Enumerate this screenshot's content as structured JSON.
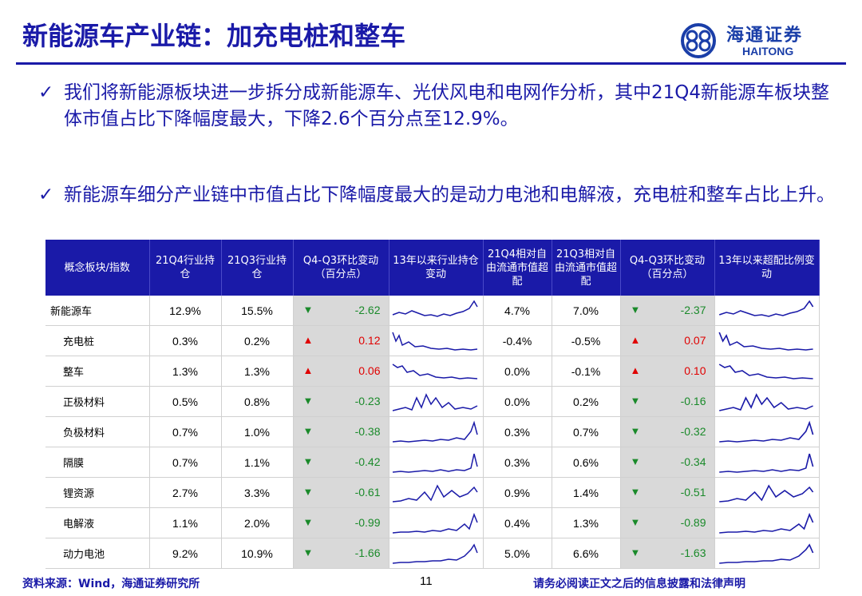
{
  "header": {
    "title": "新能源车产业链：加充电桩和整车",
    "logo_cn": "海通证券",
    "logo_en": "HAITONG",
    "accent": "#1a1aa8"
  },
  "bullets": [
    {
      "icon": "check-icon",
      "text": "我们将新能源板块进一步拆分成新能源车、光伏风电和电网作分析，其中21Q4新能源车板块整体市值占比下降幅度最大，下降2.6个百分点至12.9%。"
    },
    {
      "icon": "check-icon",
      "text": "新能源车细分产业链中市值占比下降幅度最大的是动力电池和电解液，充电桩和整车占比上升。"
    }
  ],
  "table": {
    "headers": [
      "概念板块/指数",
      "21Q4行业持仓",
      "21Q3行业持仓",
      "Q4-Q3环比变动（百分点）",
      "13年以来行业持仓变动",
      "21Q4相对自由流通市值超配",
      "21Q3相对自由流通市值超配",
      "Q4-Q3环比变动（百分点）",
      "13年以来超配比例变动"
    ],
    "rows": [
      {
        "name": "新能源车",
        "q4": "12.9%",
        "q3": "15.5%",
        "dir1": "down",
        "chg1": "-2.62",
        "ow4": "4.7%",
        "ow3": "7.0%",
        "dir2": "down",
        "chg2": "-2.37",
        "sub": false
      },
      {
        "name": "充电桩",
        "q4": "0.3%",
        "q3": "0.2%",
        "dir1": "up",
        "chg1": "0.12",
        "ow4": "-0.4%",
        "ow3": "-0.5%",
        "dir2": "up",
        "chg2": "0.07",
        "sub": true
      },
      {
        "name": "整车",
        "q4": "1.3%",
        "q3": "1.3%",
        "dir1": "up",
        "chg1": "0.06",
        "ow4": "0.0%",
        "ow3": "-0.1%",
        "dir2": "up",
        "chg2": "0.10",
        "sub": true
      },
      {
        "name": "正极材料",
        "q4": "0.5%",
        "q3": "0.8%",
        "dir1": "down",
        "chg1": "-0.23",
        "ow4": "0.0%",
        "ow3": "0.2%",
        "dir2": "down",
        "chg2": "-0.16",
        "sub": true
      },
      {
        "name": "负极材料",
        "q4": "0.7%",
        "q3": "1.0%",
        "dir1": "down",
        "chg1": "-0.38",
        "ow4": "0.3%",
        "ow3": "0.7%",
        "dir2": "down",
        "chg2": "-0.32",
        "sub": true
      },
      {
        "name": "隔膜",
        "q4": "0.7%",
        "q3": "1.1%",
        "dir1": "down",
        "chg1": "-0.42",
        "ow4": "0.3%",
        "ow3": "0.6%",
        "dir2": "down",
        "chg2": "-0.34",
        "sub": true
      },
      {
        "name": "锂资源",
        "q4": "2.7%",
        "q3": "3.3%",
        "dir1": "down",
        "chg1": "-0.61",
        "ow4": "0.9%",
        "ow3": "1.4%",
        "dir2": "down",
        "chg2": "-0.51",
        "sub": true
      },
      {
        "name": "电解液",
        "q4": "1.1%",
        "q3": "2.0%",
        "dir1": "down",
        "chg1": "-0.99",
        "ow4": "0.4%",
        "ow3": "1.3%",
        "dir2": "down",
        "chg2": "-0.89",
        "sub": true
      },
      {
        "name": "动力电池",
        "q4": "9.2%",
        "q3": "10.9%",
        "dir1": "down",
        "chg1": "-1.66",
        "ow4": "5.0%",
        "ow3": "6.6%",
        "dir2": "down",
        "chg2": "-1.63",
        "sub": true
      }
    ],
    "up_color": "#e00000",
    "down_color": "#1a8a2a",
    "up_symbol": "▲",
    "down_symbol": "▼"
  },
  "footer": {
    "source": "资料来源：Wind，海通证券研究所",
    "page": "11",
    "disclaimer": "请务必阅读正文之后的信息披露和法律声明"
  }
}
